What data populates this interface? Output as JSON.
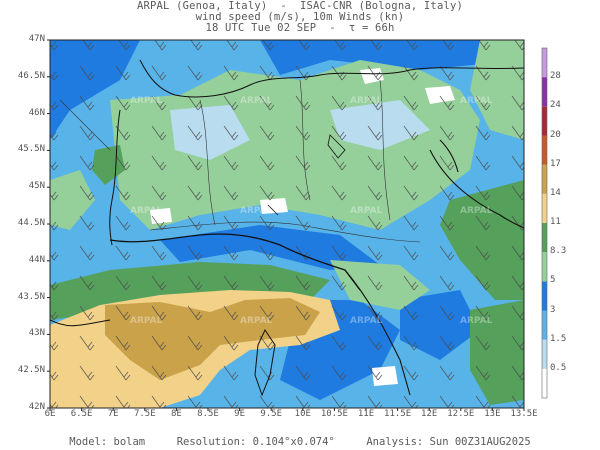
{
  "header": {
    "line1": "ARPAL (Genoa, Italy)  -  ISAC-CNR (Bologna, Italy)",
    "line2": "wind speed (m/s), 10m Winds (kn)",
    "line3": "18 UTC Tue 02 SEP  -  τ = 66h"
  },
  "lat_labels": [
    "47N",
    "46.5N",
    "46N",
    "45.5N",
    "45N",
    "44.5N",
    "44N",
    "43.5N",
    "43N",
    "42.5N",
    "42N"
  ],
  "lon_labels": [
    "6E",
    "6.5E",
    "7E",
    "7.5E",
    "8E",
    "8.5E",
    "9E",
    "9.5E",
    "10E",
    "10.5E",
    "11E",
    "11.5E",
    "12E",
    "12.5E",
    "13E",
    "13.5E"
  ],
  "colorbar": {
    "levels": [
      "0.5",
      "1.5",
      "3",
      "5",
      "8.3",
      "11",
      "14",
      "17",
      "20",
      "24",
      "28"
    ],
    "colors": [
      "#ffffff",
      "#b9dcef",
      "#57b3e8",
      "#1f7be0",
      "#95cf9a",
      "#55a05a",
      "#f2d189",
      "#c9a24a",
      "#c85a2a",
      "#a8283a",
      "#8a2fa8",
      "#c79ae0"
    ]
  },
  "watermark": "ARPAL",
  "footer": {
    "text": "Model: bolam     Resolution: 0.104°x0.074°     Analysis: Sun 00Z31AUG2025"
  }
}
